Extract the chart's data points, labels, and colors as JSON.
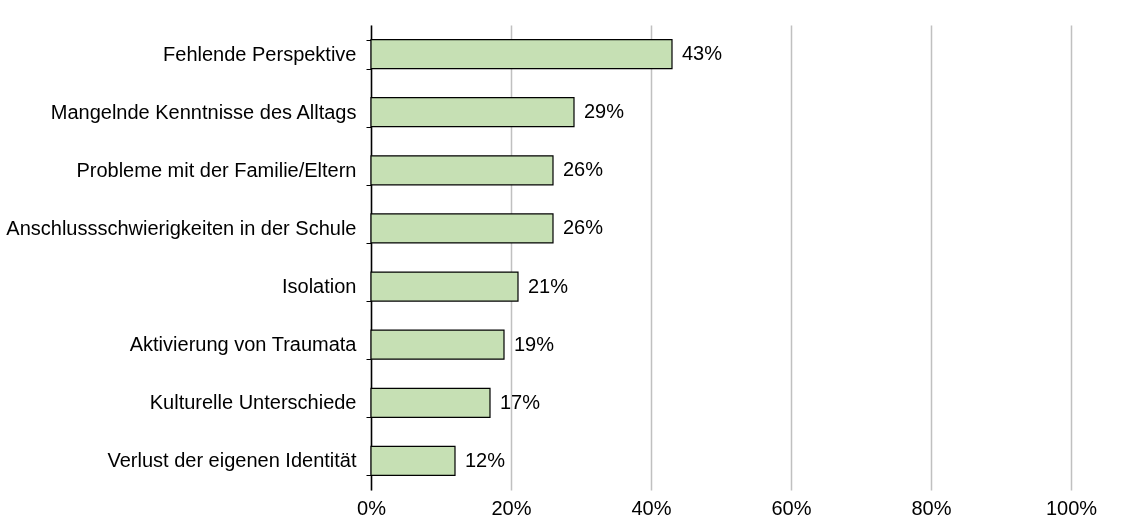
{
  "chart_data": {
    "type": "bar",
    "orientation": "horizontal",
    "categories": [
      "Fehlende Perspektive",
      "Mangelnde Kenntnisse des Alltags",
      "Probleme mit der Familie/Eltern",
      "Anschlussschwierigkeiten in der Schule",
      "Isolation",
      "Aktivierung von Traumata",
      "Kulturelle Unterschiede",
      "Verlust der eigenen Identität"
    ],
    "values": [
      43,
      29,
      26,
      26,
      21,
      19,
      17,
      12
    ],
    "value_labels": [
      "43%",
      "29%",
      "26%",
      "26%",
      "21%",
      "19%",
      "17%",
      "12%"
    ],
    "color": "#c6e0b4",
    "xlim": [
      0,
      100
    ],
    "xticks": [
      {
        "value": 0,
        "label": "0%"
      },
      {
        "value": 20,
        "label": "20%"
      },
      {
        "value": 40,
        "label": "40%"
      },
      {
        "value": 60,
        "label": "60%"
      },
      {
        "value": 80,
        "label": "80%"
      },
      {
        "value": 100,
        "label": "100%"
      }
    ],
    "grid": "x"
  }
}
